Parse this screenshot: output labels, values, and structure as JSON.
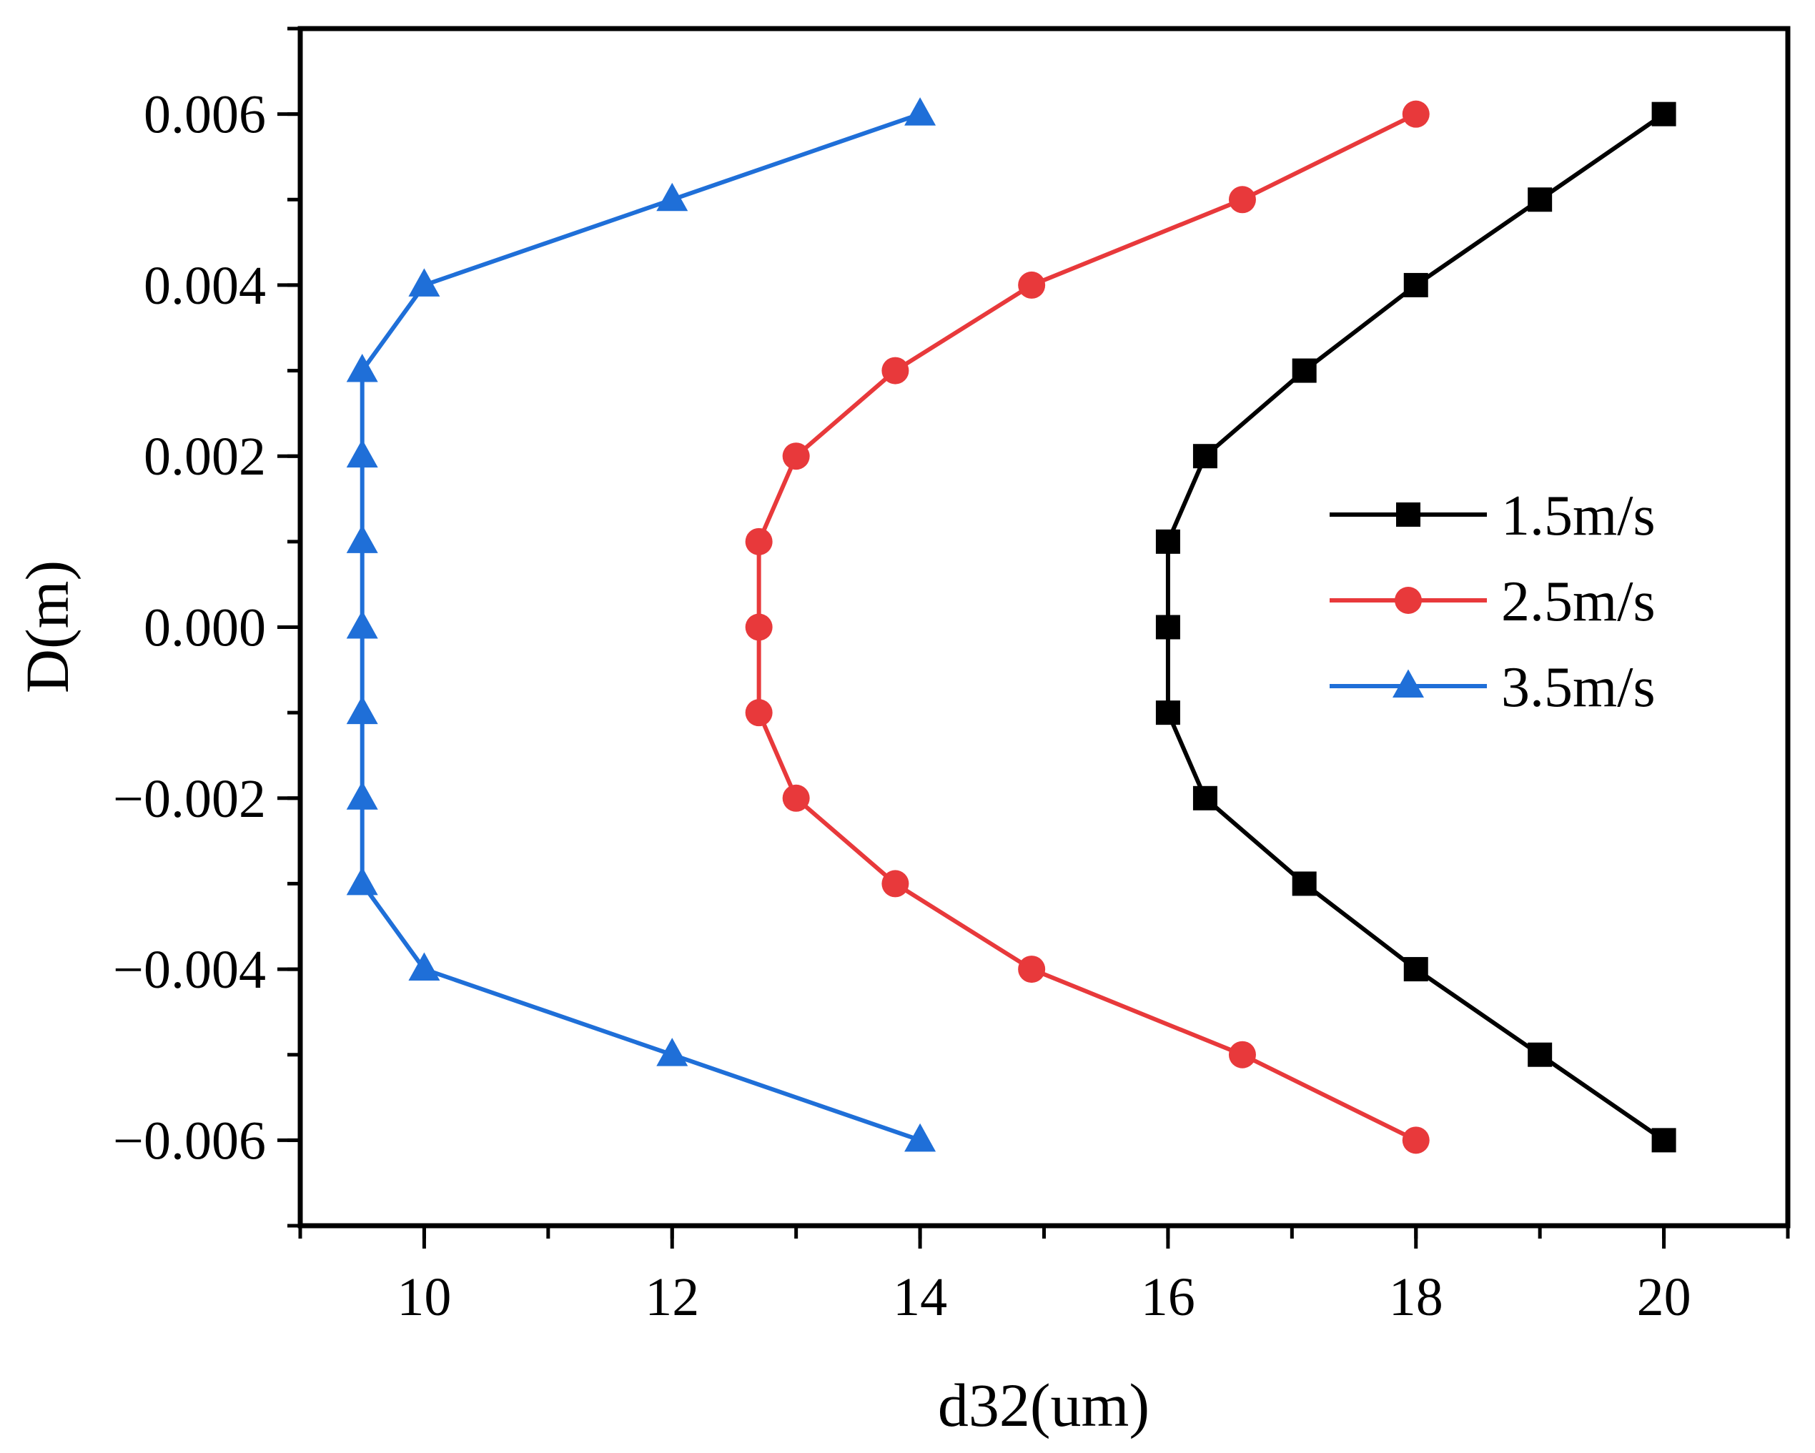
{
  "chart_data": {
    "type": "line",
    "title": "",
    "xlabel": "d32(um)",
    "ylabel": "D(m)",
    "xlim": [
      9,
      21
    ],
    "ylim": [
      -0.007,
      0.007
    ],
    "x_ticks": [
      10,
      12,
      14,
      16,
      18,
      20
    ],
    "x_tick_labels": [
      "10",
      "12",
      "14",
      "16",
      "18",
      "20"
    ],
    "y_ticks": [
      -0.006,
      -0.004,
      -0.002,
      0.0,
      0.002,
      0.004,
      0.006
    ],
    "y_tick_labels": [
      "−0.006",
      "−0.004",
      "−0.002",
      "0.000",
      "0.002",
      "0.004",
      "0.006"
    ],
    "y": [
      0.006,
      0.005,
      0.004,
      0.003,
      0.002,
      0.001,
      0.0,
      -0.001,
      -0.002,
      -0.003,
      -0.004,
      -0.005,
      -0.006
    ],
    "grid": false,
    "legend_position": "center-right",
    "series": [
      {
        "name": "1.5m/s",
        "color": "#000000",
        "marker": "square",
        "x": [
          20,
          19,
          18,
          17.1,
          16.3,
          16,
          16,
          16,
          16.3,
          17.1,
          18,
          19,
          20
        ]
      },
      {
        "name": "2.5m/s",
        "color": "#e8393b",
        "marker": "circle",
        "x": [
          18,
          16.6,
          14.9,
          13.8,
          13,
          12.7,
          12.7,
          12.7,
          13,
          13.8,
          14.9,
          16.6,
          18
        ]
      },
      {
        "name": "3.5m/s",
        "color": "#1f6fd8",
        "marker": "triangle",
        "x": [
          14,
          12,
          10,
          9.5,
          9.5,
          9.5,
          9.5,
          9.5,
          9.5,
          9.5,
          10,
          12,
          14
        ]
      }
    ]
  }
}
